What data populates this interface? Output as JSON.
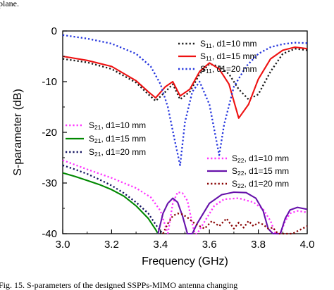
{
  "caption_top": "plane.",
  "caption_bottom": "Fig. 15. S-parameters of the designed SSPPs-MIMO antenna changing",
  "chart_data": {
    "type": "line",
    "xlabel": "Frequency (GHz)",
    "ylabel": "S-parameter (dB)",
    "xlim": [
      3.0,
      4.0
    ],
    "ylim": [
      -40,
      0
    ],
    "xticks": [
      3.0,
      3.2,
      3.4,
      3.6,
      3.8,
      4.0
    ],
    "xtick_labels": [
      "3.0",
      "3.2",
      "3.4",
      "3.6",
      "3.8",
      "4.0"
    ],
    "yticks": [
      0,
      -10,
      -20,
      -30,
      -40
    ],
    "ytick_labels": [
      "0",
      "-10",
      "-20",
      "-30",
      "-40"
    ],
    "grid": false,
    "legends": [
      {
        "placement": "top-right",
        "entries": [
          {
            "series": 0,
            "prefix": "S",
            "sub": "11",
            "suffix": ", d1=10 mm"
          },
          {
            "series": 1,
            "prefix": "S",
            "sub": "11",
            "suffix": ", d1=15 mm"
          },
          {
            "series": 2,
            "prefix": "S",
            "sub": "11",
            "suffix": ", d1=20 mm"
          }
        ]
      },
      {
        "placement": "left",
        "entries": [
          {
            "series": 3,
            "prefix": "S",
            "sub": "21",
            "suffix": ", d1=10 mm"
          },
          {
            "series": 4,
            "prefix": "S",
            "sub": "21",
            "suffix": ", d1=15 mm"
          },
          {
            "series": 5,
            "prefix": "S",
            "sub": "21",
            "suffix": ", d1=20 mm"
          }
        ]
      },
      {
        "placement": "right",
        "entries": [
          {
            "series": 6,
            "prefix": "S",
            "sub": "22",
            "suffix": ", d1=10 mm"
          },
          {
            "series": 7,
            "prefix": "S",
            "sub": "22",
            "suffix": ", d1=15 mm"
          },
          {
            "series": 8,
            "prefix": "S",
            "sub": "22",
            "suffix": ", d1=20 mm"
          }
        ]
      }
    ],
    "series": [
      {
        "color": "#1a1a1a",
        "dash": "dot",
        "x": [
          3.0,
          3.1,
          3.2,
          3.3,
          3.35,
          3.38,
          3.42,
          3.45,
          3.48,
          3.52,
          3.56,
          3.6,
          3.64,
          3.68,
          3.72,
          3.76,
          3.8,
          3.85,
          3.9,
          3.95,
          4.0
        ],
        "y": [
          -5.5,
          -6.2,
          -7.5,
          -10.2,
          -12.5,
          -13.8,
          -12.0,
          -10.5,
          -13.5,
          -12.0,
          -8.5,
          -6.5,
          -7.0,
          -8.5,
          -11.5,
          -13.5,
          -12.5,
          -8.0,
          -4.5,
          -3.5,
          -3.8
        ]
      },
      {
        "color": "#ee1111",
        "dash": "solid",
        "x": [
          3.0,
          3.1,
          3.2,
          3.3,
          3.35,
          3.38,
          3.42,
          3.45,
          3.48,
          3.52,
          3.56,
          3.6,
          3.64,
          3.68,
          3.72,
          3.76,
          3.8,
          3.85,
          3.9,
          3.95,
          4.0
        ],
        "y": [
          -5.0,
          -5.8,
          -7.0,
          -9.8,
          -12.0,
          -13.2,
          -11.0,
          -10.0,
          -12.8,
          -11.5,
          -8.0,
          -6.3,
          -7.5,
          -10.5,
          -17.2,
          -14.5,
          -9.5,
          -5.5,
          -3.8,
          -3.2,
          -3.5
        ]
      },
      {
        "color": "#2233dd",
        "dash": "dot",
        "x": [
          3.0,
          3.1,
          3.2,
          3.3,
          3.36,
          3.4,
          3.43,
          3.46,
          3.48,
          3.5,
          3.53,
          3.56,
          3.6,
          3.63,
          3.64,
          3.66,
          3.7,
          3.75,
          3.8,
          3.85,
          3.9,
          3.95,
          4.0
        ],
        "y": [
          -0.8,
          -1.5,
          -2.5,
          -4.5,
          -7.0,
          -10.5,
          -15.0,
          -22.0,
          -26.5,
          -18.0,
          -12.0,
          -10.0,
          -14.5,
          -22.0,
          -24.5,
          -18.5,
          -11.0,
          -7.0,
          -4.5,
          -3.2,
          -2.6,
          -2.3,
          -2.4
        ]
      },
      {
        "color": "#ff33ff",
        "dash": "dot",
        "x": [
          3.0,
          3.1,
          3.2,
          3.3,
          3.36,
          3.4,
          3.43
        ],
        "y": [
          -25.5,
          -27.3,
          -29.0,
          -31.0,
          -32.8,
          -35.5,
          -40.0
        ]
      },
      {
        "color": "#008800",
        "dash": "solid",
        "x": [
          3.0,
          3.05,
          3.1,
          3.15,
          3.2,
          3.25,
          3.3,
          3.35,
          3.38,
          3.39
        ],
        "y": [
          -28.0,
          -28.7,
          -29.5,
          -30.3,
          -31.3,
          -32.6,
          -34.5,
          -37.0,
          -39.2,
          -40.0
        ]
      },
      {
        "color": "#11115e",
        "dash": "dot",
        "x": [
          3.0,
          3.05,
          3.1,
          3.15,
          3.2,
          3.25,
          3.3,
          3.35,
          3.38,
          3.4,
          3.41
        ],
        "y": [
          -26.5,
          -27.3,
          -28.2,
          -29.3,
          -30.5,
          -32.0,
          -33.8,
          -36.0,
          -38.2,
          -39.5,
          -40.0
        ]
      },
      {
        "color": "#ff33ff",
        "dash": "dot",
        "x": [
          3.43,
          3.45,
          3.47,
          3.49,
          3.51,
          3.53,
          3.54,
          3.55,
          3.62,
          3.66,
          3.72,
          3.78,
          3.82,
          3.85,
          3.87,
          3.88,
          3.89,
          3.91,
          3.93,
          3.96,
          4.0
        ],
        "y": [
          -40.0,
          -34.0,
          -31.8,
          -32.0,
          -33.5,
          -38.0,
          -40.0,
          -40.0,
          -34.5,
          -33.2,
          -33.0,
          -33.8,
          -35.2,
          -37.5,
          -40.0,
          -40.0,
          -40.0,
          -37.5,
          -36.0,
          -35.5,
          -35.8
        ]
      },
      {
        "color": "#6611aa",
        "dash": "solid",
        "x": [
          3.39,
          3.41,
          3.43,
          3.45,
          3.47,
          3.49,
          3.51,
          3.53,
          3.55,
          3.6,
          3.65,
          3.7,
          3.75,
          3.79,
          3.82,
          3.84,
          3.86,
          3.88,
          3.89,
          3.91,
          3.93,
          3.96,
          4.0
        ],
        "y": [
          -40.0,
          -36.0,
          -34.0,
          -33.0,
          -33.8,
          -36.5,
          -40.0,
          -40.0,
          -38.0,
          -34.0,
          -32.3,
          -31.8,
          -31.9,
          -33.0,
          -35.5,
          -39.0,
          -40.0,
          -40.0,
          -40.0,
          -37.0,
          -35.3,
          -34.8,
          -35.2
        ]
      },
      {
        "color": "#880000",
        "dash": "dot",
        "x": [
          3.41,
          3.43,
          3.45,
          3.47,
          3.49,
          3.51,
          3.54,
          3.58,
          3.61,
          3.64,
          3.67,
          3.7,
          3.72,
          3.74,
          3.76,
          3.78,
          3.8,
          3.82,
          3.84,
          3.86,
          3.88,
          3.9,
          3.92,
          3.94,
          3.96,
          3.98,
          4.0
        ],
        "y": [
          -40.0,
          -38.0,
          -36.5,
          -36.0,
          -36.2,
          -36.8,
          -38.0,
          -39.0,
          -37.5,
          -38.5,
          -37.0,
          -39.0,
          -37.8,
          -38.8,
          -37.5,
          -38.5,
          -37.8,
          -38.2,
          -39.0,
          -38.8,
          -40.0,
          -40.0,
          -40.0,
          -40.0,
          -39.5,
          -39.0,
          -38.5
        ]
      }
    ]
  }
}
